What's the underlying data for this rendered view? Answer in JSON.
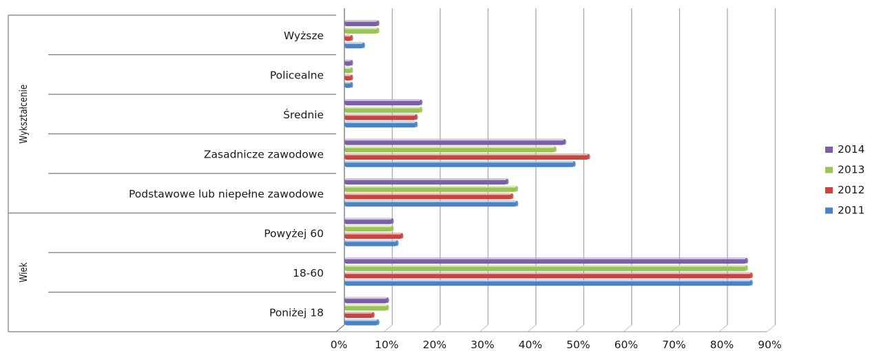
{
  "chart_data": {
    "type": "bar",
    "orientation": "horizontal",
    "title": "",
    "xlabel": "",
    "ylabel": "",
    "xlim": [
      0,
      90
    ],
    "x_ticks": [
      "0%",
      "10%",
      "20%",
      "30%",
      "40%",
      "50%",
      "60%",
      "70%",
      "80%",
      "90%"
    ],
    "grid": true,
    "legend_position": "right",
    "groups": [
      {
        "label": "Wykształcenie",
        "categories": [
          "Wyższe",
          "Policealne",
          "Średnie",
          "Zasadnicze zawodowe",
          "Podstawowe lub niepełne zawodowe"
        ]
      },
      {
        "label": "Wiek",
        "categories": [
          "Powyżej 60",
          "18-60",
          "Poniżej 18"
        ]
      }
    ],
    "categories": [
      "Wyższe",
      "Policealne",
      "Średnie",
      "Zasadnicze zawodowe",
      "Podstawowe lub niepełne zawodowe",
      "Powyżej 60",
      "18-60",
      "Poniżej 18"
    ],
    "series": [
      {
        "name": "2014",
        "color": "#7b5ea7",
        "values": [
          7,
          1.5,
          16,
          46,
          34,
          10,
          84,
          9
        ]
      },
      {
        "name": "2013",
        "color": "#98c455",
        "values": [
          7,
          1.5,
          16,
          44,
          36,
          10,
          84,
          9
        ]
      },
      {
        "name": "2012",
        "color": "#c8453f",
        "values": [
          1.5,
          1.5,
          15,
          51,
          35,
          12,
          85,
          6
        ]
      },
      {
        "name": "2011",
        "color": "#4a82c3",
        "values": [
          4,
          1.5,
          15,
          48,
          36,
          11,
          85,
          7
        ]
      }
    ]
  }
}
